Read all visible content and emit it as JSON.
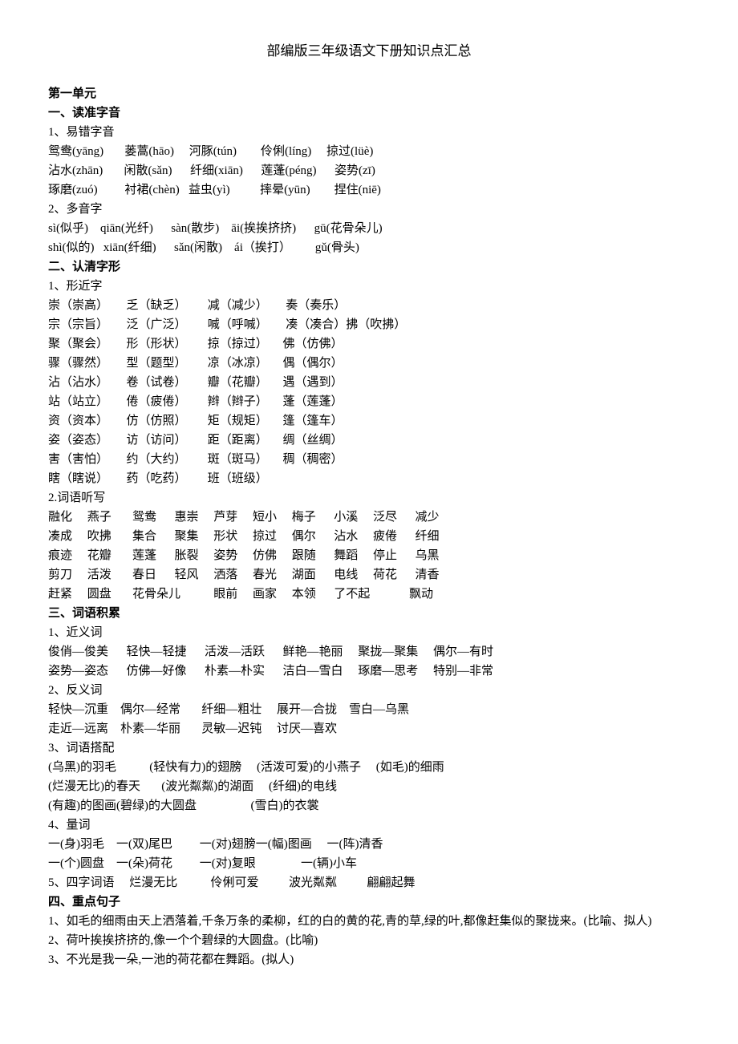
{
  "title": "部编版三年级语文下册知识点汇总",
  "unit_heading": "第一单元",
  "h1": "一、读准字音",
  "h1_1": "1、易错字音",
  "r1_1": "鸳鸯(yāng)       蒌蒿(hāo)     河豚(tún)        伶俐(líng)     掠过(lüè)",
  "r1_2": "沾水(zhān)       闲散(sǎn)      纤细(xiān)      莲蓬(péng)      姿势(zī)",
  "r1_3": "琢磨(zuó)         衬裙(chèn)   益虫(yì)          摔晕(yūn)        捏住(niē)",
  "h1_2": "2、多音字",
  "r2_1": "sì(似乎)    qiān(光纤)      sàn(散步)    āi(挨挨挤挤)      gū(花骨朵儿)",
  "r2_2": "shì(似的)   xiān(纤细)      sǎn(闲散)    ái（挨打）        gǔ(骨头)",
  "h2": "二、认清字形",
  "h2_1": "1、形近字",
  "f1": "崇（崇高）      乏（缺乏）       减（减少）      奏（奏乐）",
  "f2": "宗（宗旨）      泛（广泛）       喊（呼喊）      凑（凑合）拂（吹拂）",
  "f3": "聚（聚会）      形（形状）       掠（掠过）     佛（仿佛）",
  "f4": "骤（骤然）      型（题型）       凉（冰凉）     偶（偶尔）",
  "f5": "沾（沾水）      卷（试卷）       瓣（花瓣）     遇（遇到）",
  "f6": "站（站立）      倦（疲倦）       辫（辫子）     蓬（莲蓬）",
  "f7": "资（资本）      仿（仿照）       矩（规矩）     篷（篷车）",
  "f8": "姿（姿态）      访（访问）       距（距离）     绸（丝绸）",
  "f9": "害（害怕）      约（大约）       斑（斑马）     稠（稠密）",
  "f10": "瞎（瞎说）      药（吃药）       班（班级）",
  "h2_2": "2.词语听写",
  "w1": "融化     燕子       鸳鸯      惠崇     芦芽     短小     梅子      小溪     泛尽      减少",
  "w2": "凑成     吹拂       集合      聚集     形状     掠过     偶尔      沾水     疲倦      纤细",
  "w3": "痕迹     花瓣       莲蓬      胀裂     姿势     仿佛     跟随      舞蹈     停止      乌黑",
  "w4": "剪刀     活泼       春日      轻风     洒落     春光     湖面      电线     荷花      清香",
  "w5": "赶紧     圆盘       花骨朵儿           眼前     画家     本领      了不起             飘动",
  "h3": "三、词语积累",
  "h3_1": "1、近义词",
  "n1": "俊俏—俊美      轻快—轻捷      活泼—活跃      鲜艳—艳丽     聚拢—聚集     偶尔—有时",
  "n2": "姿势—姿态      仿佛—好像      朴素—朴实      洁白—雪白     琢磨—思考     特别—非常",
  "h3_2": "2、反义词",
  "a1": "轻快—沉重    偶尔—经常       纤细—粗壮     展开—合拢    雪白—乌黑",
  "a2": "走近—远离    朴素—华丽       灵敏—迟钝     讨厌—喜欢",
  "h3_3": "3、词语搭配",
  "c1": "(乌黑)的羽毛           (轻快有力)的翅膀     (活泼可爱)的小燕子     (如毛)的细雨",
  "c2": "(烂漫无比)的春天       (波光粼粼)的湖面     (纤细)的电线",
  "c3": "(有趣)的图画(碧绿)的大圆盘                  (雪白)的衣裳",
  "h3_4": "4、量词",
  "m1": "一(身)羽毛    一(双)尾巴         一(对)翅膀一(幅)图画     一(阵)清香",
  "m2": "一(个)圆盘    一(朵)荷花         一(对)复眼               一(辆)小车",
  "h3_5": "5、四字词语     烂漫无比           伶俐可爱          波光粼粼          翩翩起舞",
  "h4": "四、重点句子",
  "s1": "1、如毛的细雨由天上洒落着,千条万条的柔柳，红的白的黄的花,青的草,绿的叶,都像赶集似的聚拢来。(比喻、拟人)",
  "s2": "2、荷叶挨挨挤挤的,像一个个碧绿的大圆盘。(比喻)",
  "s3": "3、不光是我一朵,一池的荷花都在舞蹈。(拟人)"
}
